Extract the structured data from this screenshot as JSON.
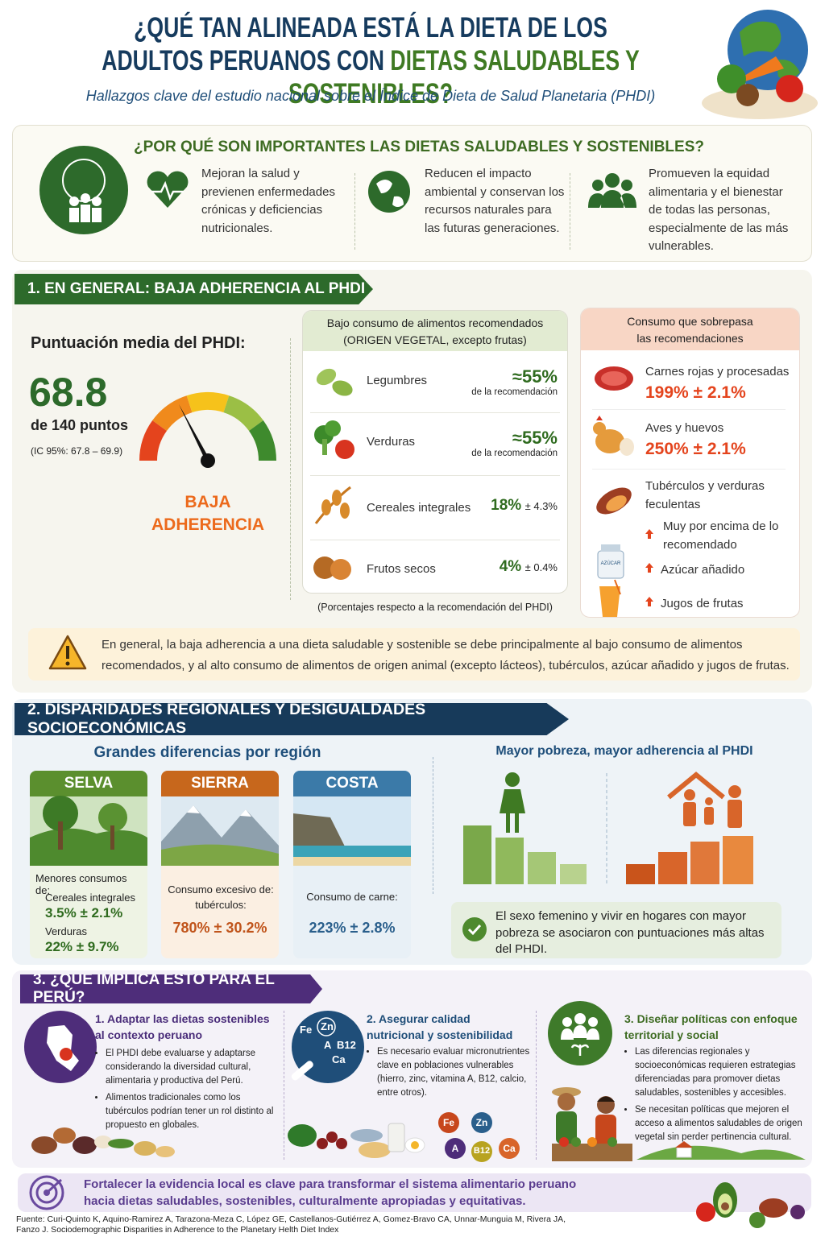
{
  "header": {
    "title_line1": "¿QUÉ TAN ALINEADA ESTÁ LA DIETA DE LOS",
    "title_line2_start": "ADULTOS PERUANOS CON",
    "title_line2_highlight": "DIETAS SALUDABLES Y SOSTENIBLES?",
    "subtitle": "Hallazgos clave del estudio nacional sobre el Índice de Dieta de Salud Planetaria (PHDI)"
  },
  "why": {
    "title": "¿POR QUÉ SON IMPORTANTES LAS DIETAS SALUDABLES Y SOSTENIBLES?",
    "items": [
      "Mejoran la salud y previenen enfermedades crónicas y deficiencias nutricionales.",
      "Reducen el impacto ambiental y conservan los recursos naturales para las futuras generaciones.",
      "Promueven la equidad alimentaria y el bienestar de todas las personas, especialmente de las más vulnerables."
    ]
  },
  "section1": {
    "heading": "1. EN GENERAL: BAJA ADHERENCIA AL PHDI",
    "score_label": "Puntuación media del PHDI:",
    "score": 68.8,
    "score_scale": "de 140 puntos",
    "ci": "(IC 95%: 67.8 – 69.9)",
    "gauge_label_line1": "BAJA",
    "gauge_label_line2": "ADHERENCIA",
    "low": {
      "title_line1": "Bajo consumo de alimentos recomendados",
      "title_line2": "(ORIGEN VEGETAL, excepto frutas)",
      "items": [
        {
          "name": "Legumbres",
          "value": "≈55%",
          "note": "de la recomendación"
        },
        {
          "name": "Verduras",
          "value": "≈55%",
          "note": "de la recomendación"
        },
        {
          "name": "Cereales integrales",
          "value": "18%",
          "error": "± 4.3%"
        },
        {
          "name": "Frutos secos",
          "value": "4%",
          "error": "± 0.4%"
        }
      ],
      "footnote": "(Porcentajes respecto a la recomendación del PHDI)"
    },
    "excess": {
      "title_line1": "Consumo que sobrepasa",
      "title_line2": "las recomendaciones",
      "items": [
        {
          "name": "Carnes rojas y procesadas",
          "value": "199% ± 2.1%"
        },
        {
          "name": "Aves y huevos",
          "value": "250% ± 2.1%"
        }
      ],
      "tubers_line1": "Tubérculos y verduras",
      "tubers_line2": "feculentas",
      "flags": [
        "Muy por encima de lo recomendado",
        "Azúcar añadido",
        "Jugos de frutas"
      ],
      "jar_label": "AZÚCAR"
    },
    "warning": "En general, la baja adherencia a una dieta saludable y sostenible se debe principalmente al bajo consumo de alimentos recomendados, y al alto consumo de alimentos de origen animal (excepto lácteos), tubérculos, azúcar añadido y jugos de frutas."
  },
  "section2": {
    "heading": "2. DISPARIDADES REGIONALES Y DESIGUALDADES SOCIOECONÓMICAS",
    "regions_title": "Grandes diferencias por región",
    "selva": {
      "name": "SELVA",
      "desc": "Menores consumos de:",
      "items": [
        {
          "name": "Cereales integrales",
          "value": "3.5% ± 2.1%"
        },
        {
          "name": "Verduras",
          "value": "22% ± 9.7%"
        }
      ]
    },
    "sierra": {
      "name": "SIERRA",
      "desc": "Consumo excesivo de: tubérculos:",
      "value": "780% ± 30.2%"
    },
    "costa": {
      "name": "COSTA",
      "desc": "Consumo de carne:",
      "value": "223% ± 2.8%"
    },
    "poverty_title": "Mayor pobreza, mayor adherencia al PHDI",
    "conclusion": "El sexo femenino y vivir en hogares con mayor pobreza se asociaron con puntuaciones más altas del PHDI."
  },
  "section3": {
    "heading": "3. ¿QUÉ IMPLICA ESTO PARA EL PERÚ?",
    "columns": [
      {
        "title": "1. Adaptar las dietas sostenibles al contexto peruano",
        "bullets": [
          "El PHDI debe evaluarse y adaptarse considerando la diversidad cultural, alimentaria y productiva del Perú.",
          "Alimentos tradicionales como los tubérculos podrían tener un rol distinto al propuesto en globales."
        ]
      },
      {
        "title": "2. Asegurar calidad nutricional y sostenibilidad",
        "bullets": [
          "Es necesario evaluar micronutrientes clave en poblaciones vulnerables (hierro, zinc, vitamina A, B12, calcio, entre otros)."
        ]
      },
      {
        "title": "3. Diseñar políticas con enfoque territorial y social",
        "bullets": [
          "Las diferencias regionales y socioeconómicas requieren estrategias diferenciadas para promover dietas saludables, sostenibles y accesibles.",
          "Se necesitan políticas que mejoren el acceso a alimentos saludables de origen vegetal sin perder pertinencia cultural."
        ]
      }
    ],
    "nutrients": [
      "Fe",
      "Zn",
      "A",
      "B12",
      "Ca"
    ]
  },
  "final": "Fortalecer la evidencia local es clave para transformar el sistema alimentario peruano hacia dietas saludables, sostenibles, culturalmente apropiadas y equitativas.",
  "source": "Fuente: Curi-Quinto K, Aquino-Ramirez A, Tarazona-Meza C, López GE, Castellanos-Gutiérrez A, Gomez-Bravo CA, Unnar-Munguia M, Rivera JA, Fanzo J. Sociodemographic Disparities in Adherence to the Planetary Helth Diet Index"
}
